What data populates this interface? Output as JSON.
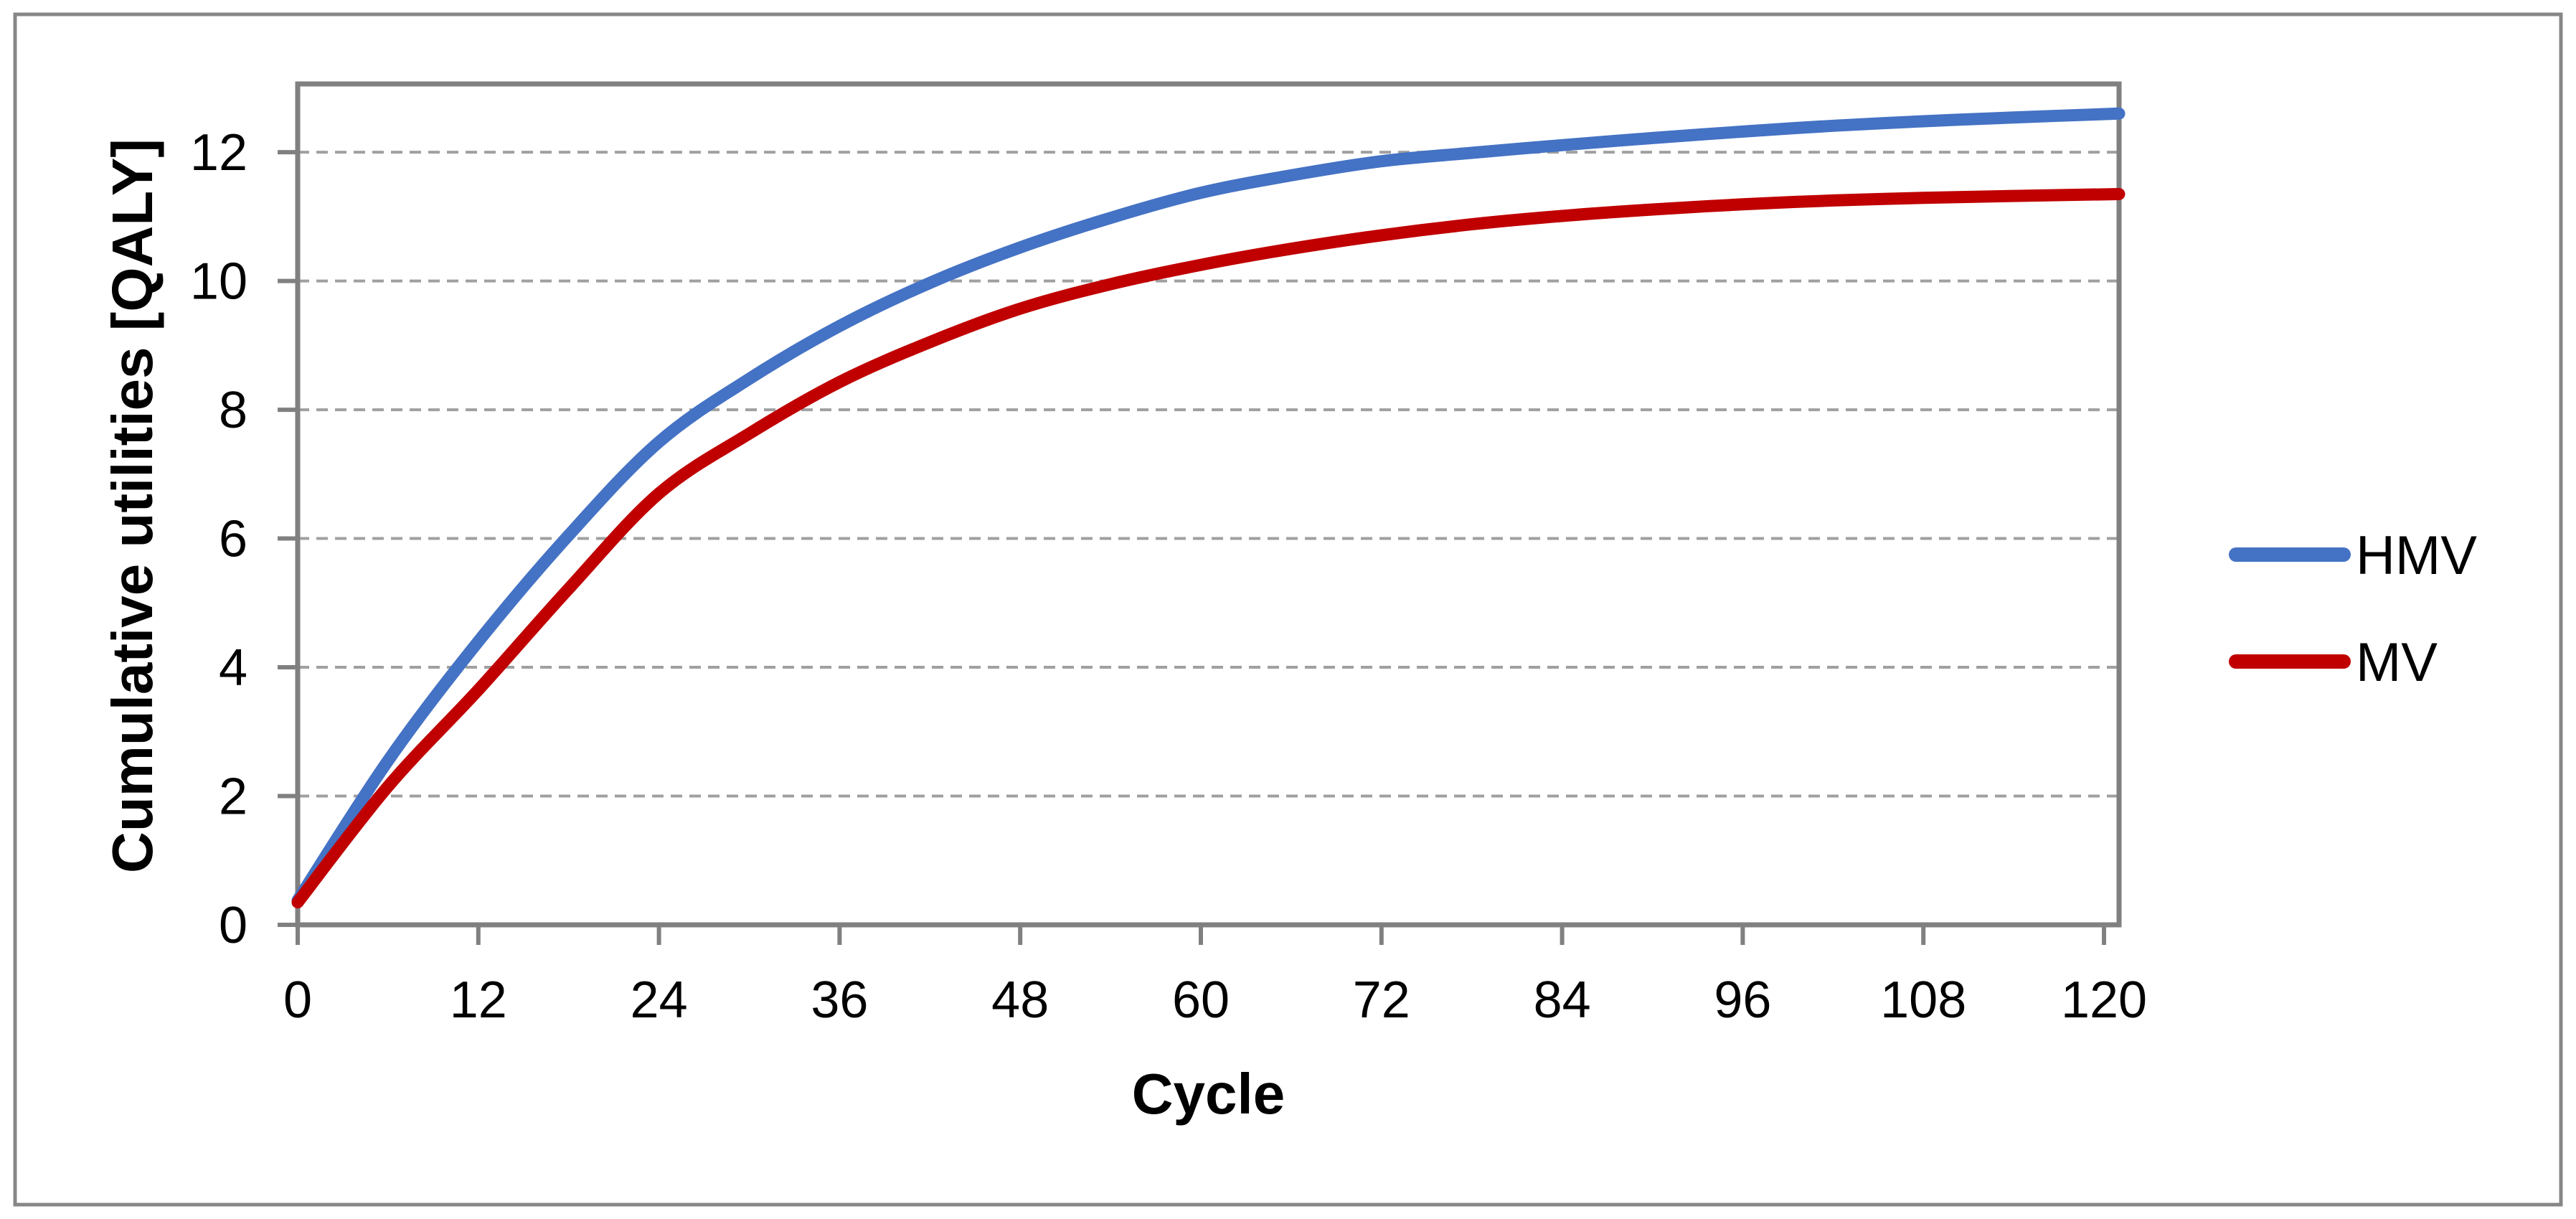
{
  "figure": {
    "background": "#FFFFFF",
    "border_color": "#878787",
    "axis_color": "#808080",
    "gridline_color": "#A0A0A0",
    "text_color": "#000000"
  },
  "chart_data": {
    "type": "line",
    "title": "",
    "xlabel": "Cycle",
    "ylabel": "Cumulative utilities [QALY]",
    "xlim": [
      0,
      121
    ],
    "ylim": [
      0,
      13.06
    ],
    "x_ticks": [
      0,
      12,
      24,
      36,
      48,
      60,
      72,
      84,
      96,
      108,
      120
    ],
    "y_ticks": [
      0,
      2,
      4,
      6,
      8,
      10,
      12
    ],
    "grid": "horizontal-dashed",
    "legend_position": "right-center",
    "x": [
      0,
      6,
      12,
      18,
      24,
      30,
      36,
      42,
      48,
      54,
      60,
      66,
      72,
      78,
      84,
      90,
      96,
      102,
      108,
      114,
      121
    ],
    "series": [
      {
        "name": "HMV",
        "color": "#4472C4",
        "values": [
          0.38,
          2.55,
          4.4,
          6.05,
          7.5,
          8.48,
          9.3,
          9.97,
          10.52,
          10.98,
          11.37,
          11.64,
          11.86,
          11.99,
          12.11,
          12.22,
          12.32,
          12.41,
          12.48,
          12.54,
          12.6
        ]
      },
      {
        "name": "MV",
        "color": "#C00000",
        "values": [
          0.35,
          2.15,
          3.65,
          5.22,
          6.7,
          7.63,
          8.43,
          9.05,
          9.57,
          9.95,
          10.25,
          10.5,
          10.71,
          10.88,
          11.01,
          11.11,
          11.19,
          11.25,
          11.29,
          11.32,
          11.35
        ]
      }
    ]
  }
}
